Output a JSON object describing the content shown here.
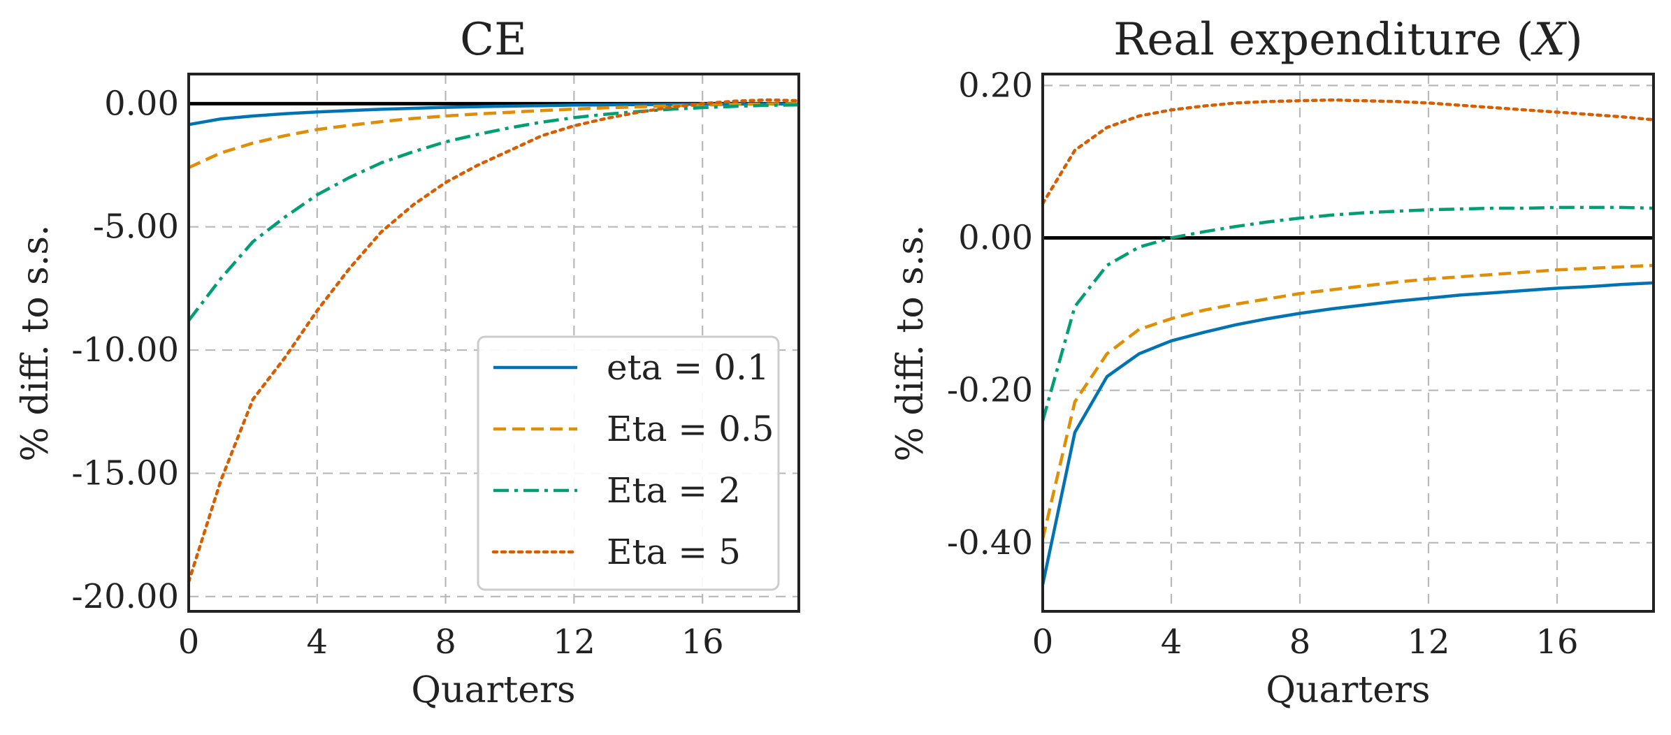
{
  "colors": {
    "eta_0_1": "#0173b2",
    "eta_0_5": "#de8f05",
    "eta_2": "#029e73",
    "eta_5": "#d55e00"
  },
  "legend": {
    "placement": "lower-right",
    "items": [
      "eta = 0.1",
      "Eta = 0.5",
      "Eta = 2",
      "Eta = 5"
    ]
  },
  "chart_data": [
    {
      "type": "line",
      "title": "CE",
      "xlabel": "Quarters",
      "ylabel": "% diff. to s.s.",
      "xlim": [
        0,
        19
      ],
      "ylim": [
        -20.6,
        1.2
      ],
      "xticks": [
        "0",
        "4",
        "8",
        "12",
        "16"
      ],
      "yticks": [
        "0.00",
        "-5.00",
        "-10.00",
        "-15.00",
        "-20.00"
      ],
      "grid": true,
      "zero_line": true,
      "legend": "lower-right",
      "x": [
        0,
        1,
        2,
        3,
        4,
        5,
        6,
        7,
        8,
        9,
        10,
        11,
        12,
        13,
        14,
        15,
        16,
        17,
        18,
        19
      ],
      "series": [
        {
          "name": "eta = 0.1",
          "style": "solid",
          "values": [
            -0.85,
            -0.62,
            -0.5,
            -0.41,
            -0.34,
            -0.28,
            -0.23,
            -0.19,
            -0.15,
            -0.12,
            -0.1,
            -0.08,
            -0.06,
            -0.05,
            -0.04,
            -0.03,
            -0.02,
            -0.02,
            -0.01,
            -0.01
          ]
        },
        {
          "name": "Eta = 0.5",
          "style": "dashed",
          "values": [
            -2.6,
            -2.0,
            -1.6,
            -1.3,
            -1.05,
            -0.88,
            -0.73,
            -0.6,
            -0.5,
            -0.42,
            -0.35,
            -0.28,
            -0.22,
            -0.17,
            -0.13,
            -0.09,
            -0.06,
            -0.03,
            -0.01,
            0.0
          ]
        },
        {
          "name": "Eta = 2",
          "style": "dashdot",
          "values": [
            -8.8,
            -7.1,
            -5.6,
            -4.6,
            -3.7,
            -3.0,
            -2.4,
            -1.95,
            -1.55,
            -1.25,
            -0.98,
            -0.75,
            -0.57,
            -0.43,
            -0.32,
            -0.23,
            -0.16,
            -0.11,
            -0.07,
            -0.05
          ]
        },
        {
          "name": "Eta = 5",
          "style": "dotted",
          "values": [
            -19.4,
            -15.3,
            -12.0,
            -10.3,
            -8.4,
            -6.7,
            -5.2,
            -4.1,
            -3.2,
            -2.5,
            -1.9,
            -1.3,
            -0.9,
            -0.6,
            -0.35,
            -0.15,
            0.0,
            0.1,
            0.15,
            0.12
          ]
        }
      ]
    },
    {
      "type": "line",
      "title_main": "Real expenditure (",
      "title_var": "X",
      "title_end": ")",
      "xlabel": "Quarters",
      "ylabel": "% diff. to s.s.",
      "xlim": [
        0,
        19
      ],
      "ylim": [
        -0.49,
        0.215
      ],
      "xticks": [
        "0",
        "4",
        "8",
        "12",
        "16"
      ],
      "yticks": [
        "0.20",
        "0.00",
        "-0.20",
        "-0.40"
      ],
      "grid": true,
      "zero_line": true,
      "x": [
        0,
        1,
        2,
        3,
        4,
        5,
        6,
        7,
        8,
        9,
        10,
        11,
        12,
        13,
        14,
        15,
        16,
        17,
        18,
        19
      ],
      "series": [
        {
          "name": "eta = 0.1",
          "style": "solid",
          "values": [
            -0.455,
            -0.255,
            -0.182,
            -0.152,
            -0.135,
            -0.124,
            -0.114,
            -0.106,
            -0.099,
            -0.093,
            -0.088,
            -0.083,
            -0.079,
            -0.075,
            -0.072,
            -0.069,
            -0.066,
            -0.064,
            -0.061,
            -0.059
          ]
        },
        {
          "name": "Eta = 0.5",
          "style": "dashed",
          "values": [
            -0.395,
            -0.215,
            -0.152,
            -0.12,
            -0.106,
            -0.095,
            -0.087,
            -0.08,
            -0.073,
            -0.068,
            -0.063,
            -0.058,
            -0.054,
            -0.051,
            -0.048,
            -0.045,
            -0.042,
            -0.04,
            -0.038,
            -0.036
          ]
        },
        {
          "name": "Eta = 2",
          "style": "dashdot",
          "values": [
            -0.24,
            -0.09,
            -0.036,
            -0.012,
            0.0,
            0.008,
            0.015,
            0.021,
            0.026,
            0.03,
            0.033,
            0.035,
            0.037,
            0.038,
            0.039,
            0.039,
            0.04,
            0.04,
            0.04,
            0.039
          ]
        },
        {
          "name": "Eta = 5",
          "style": "dotted",
          "values": [
            0.045,
            0.115,
            0.145,
            0.16,
            0.168,
            0.173,
            0.177,
            0.179,
            0.18,
            0.181,
            0.18,
            0.179,
            0.177,
            0.174,
            0.171,
            0.168,
            0.165,
            0.162,
            0.159,
            0.155
          ]
        }
      ]
    }
  ]
}
